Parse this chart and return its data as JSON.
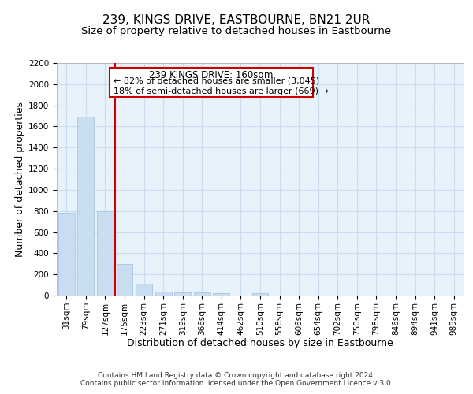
{
  "title": "239, KINGS DRIVE, EASTBOURNE, BN21 2UR",
  "subtitle": "Size of property relative to detached houses in Eastbourne",
  "xlabel": "Distribution of detached houses by size in Eastbourne",
  "ylabel": "Number of detached properties",
  "footnote1": "Contains HM Land Registry data © Crown copyright and database right 2024.",
  "footnote2": "Contains public sector information licensed under the Open Government Licence v 3.0.",
  "bar_labels": [
    "31sqm",
    "79sqm",
    "127sqm",
    "175sqm",
    "223sqm",
    "271sqm",
    "319sqm",
    "366sqm",
    "414sqm",
    "462sqm",
    "510sqm",
    "558sqm",
    "606sqm",
    "654sqm",
    "702sqm",
    "750sqm",
    "798sqm",
    "846sqm",
    "894sqm",
    "941sqm",
    "989sqm"
  ],
  "bar_values": [
    780,
    1690,
    795,
    300,
    115,
    40,
    30,
    30,
    20,
    0,
    20,
    0,
    0,
    0,
    0,
    0,
    0,
    0,
    0,
    0,
    0
  ],
  "bar_color": "#c8ddef",
  "bar_edge_color": "#a0c0de",
  "vline_x": 2.5,
  "vline_color": "#cc0000",
  "annotation_title": "239 KINGS DRIVE: 160sqm",
  "annotation_line1": "← 82% of detached houses are smaller (3,045)",
  "annotation_line2": "18% of semi-detached houses are larger (669) →",
  "annotation_box_facecolor": "#ffffff",
  "annotation_box_edgecolor": "#cc0000",
  "ylim": [
    0,
    2200
  ],
  "yticks": [
    0,
    200,
    400,
    600,
    800,
    1000,
    1200,
    1400,
    1600,
    1800,
    2000,
    2200
  ],
  "grid_color": "#c8ddf0",
  "background_color": "#e8f2fb",
  "title_fontsize": 11,
  "subtitle_fontsize": 9.5,
  "axis_label_fontsize": 9,
  "tick_fontsize": 7.5,
  "annotation_title_fontsize": 8.5,
  "annotation_text_fontsize": 8
}
